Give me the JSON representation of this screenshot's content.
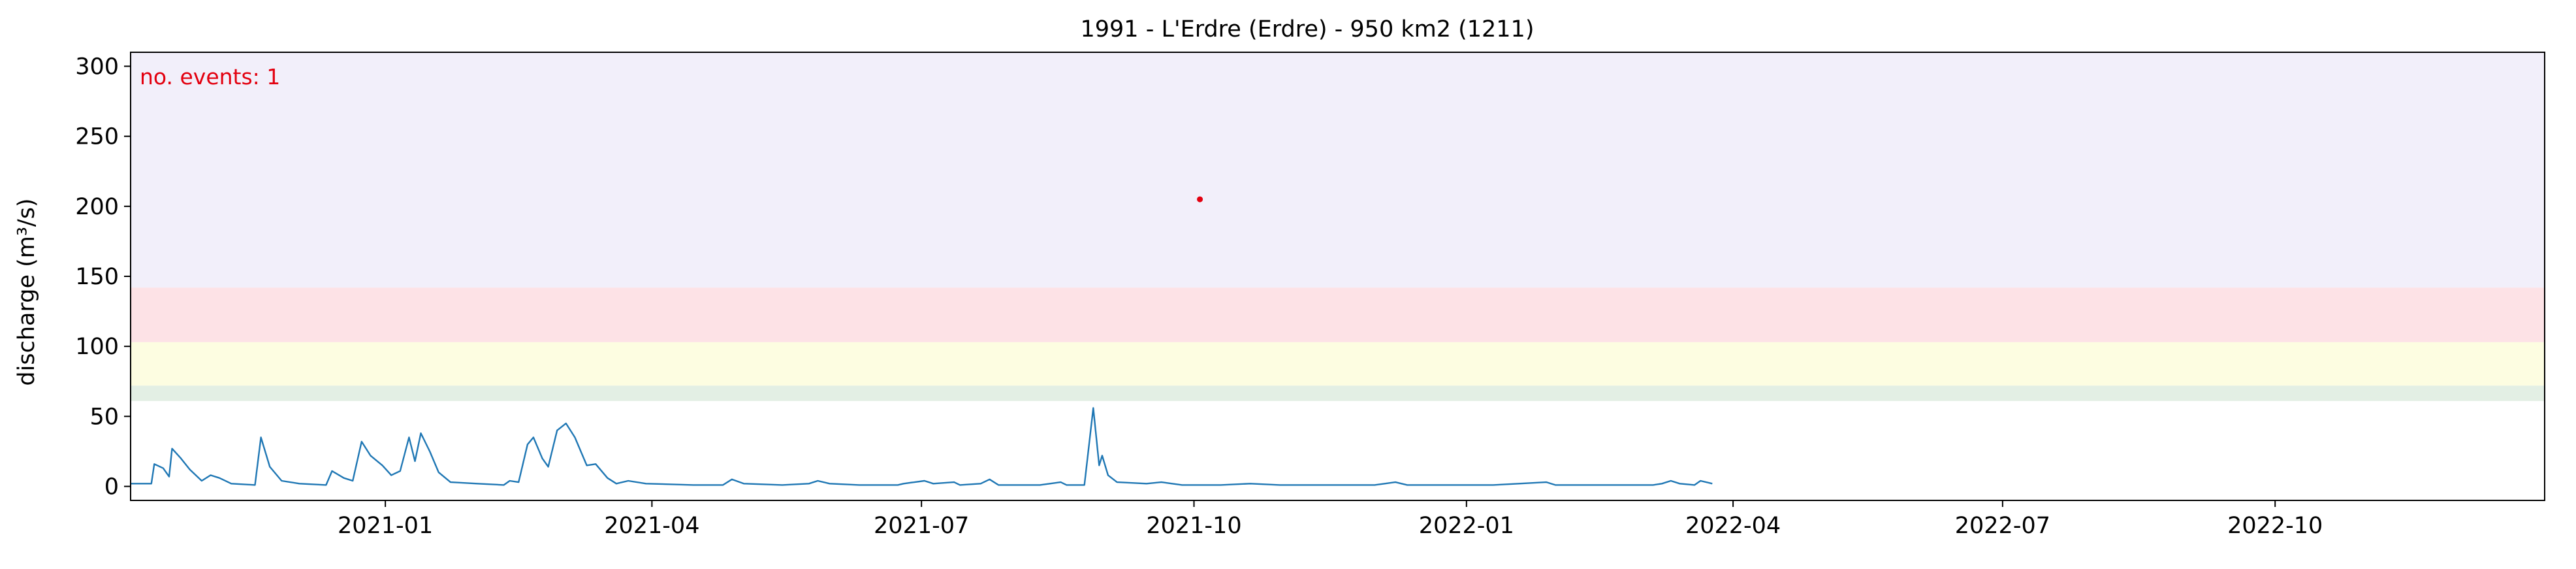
{
  "chart_data": {
    "type": "line",
    "title": "1991 - L'Erdre (Erdre) - 950 km2 (1211)",
    "ylabel": "discharge (m³/s)",
    "xlabel": "",
    "x_range": [
      "2020-10-07",
      "2022-12-31"
    ],
    "ylim": [
      -10,
      310
    ],
    "yticks": [
      0,
      50,
      100,
      150,
      200,
      250,
      300
    ],
    "xticks": [
      {
        "date": "2021-01-01",
        "label": "2021-01"
      },
      {
        "date": "2021-04-01",
        "label": "2021-04"
      },
      {
        "date": "2021-07-01",
        "label": "2021-07"
      },
      {
        "date": "2021-10-01",
        "label": "2021-10"
      },
      {
        "date": "2022-01-01",
        "label": "2022-01"
      },
      {
        "date": "2022-04-01",
        "label": "2022-04"
      },
      {
        "date": "2022-07-01",
        "label": "2022-07"
      },
      {
        "date": "2022-10-01",
        "label": "2022-10"
      }
    ],
    "threshold_bands": [
      {
        "from": 61,
        "to": 72,
        "color": "#e3efe4"
      },
      {
        "from": 72,
        "to": 103,
        "color": "#fdfde1"
      },
      {
        "from": 103,
        "to": 142,
        "color": "#fde2e6"
      },
      {
        "from": 142,
        "to": 310,
        "color": "#f2effa"
      }
    ],
    "annotation": {
      "text": "no. events: 1",
      "color": "#e3000f",
      "position": "top-left"
    },
    "events": [
      {
        "date": "2021-10-03",
        "value": 205
      }
    ],
    "line_color": "#1f77b4",
    "series": [
      {
        "points": [
          [
            "2020-10-07",
            2
          ],
          [
            "2020-10-14",
            2
          ],
          [
            "2020-10-15",
            16
          ],
          [
            "2020-10-18",
            13
          ],
          [
            "2020-10-20",
            7
          ],
          [
            "2020-10-21",
            27
          ],
          [
            "2020-10-24",
            20
          ],
          [
            "2020-10-27",
            12
          ],
          [
            "2020-10-31",
            4
          ],
          [
            "2020-11-03",
            8
          ],
          [
            "2020-11-06",
            6
          ],
          [
            "2020-11-10",
            2
          ],
          [
            "2020-11-18",
            1
          ],
          [
            "2020-11-20",
            35
          ],
          [
            "2020-11-23",
            14
          ],
          [
            "2020-11-27",
            4
          ],
          [
            "2020-12-03",
            2
          ],
          [
            "2020-12-12",
            1
          ],
          [
            "2020-12-14",
            11
          ],
          [
            "2020-12-18",
            6
          ],
          [
            "2020-12-21",
            4
          ],
          [
            "2020-12-24",
            32
          ],
          [
            "2020-12-27",
            22
          ],
          [
            "2020-12-31",
            15
          ],
          [
            "2021-01-03",
            8
          ],
          [
            "2021-01-06",
            11
          ],
          [
            "2021-01-09",
            35
          ],
          [
            "2021-01-11",
            18
          ],
          [
            "2021-01-13",
            38
          ],
          [
            "2021-01-16",
            25
          ],
          [
            "2021-01-19",
            10
          ],
          [
            "2021-01-23",
            3
          ],
          [
            "2021-02-01",
            2
          ],
          [
            "2021-02-10",
            1
          ],
          [
            "2021-02-12",
            4
          ],
          [
            "2021-02-15",
            3
          ],
          [
            "2021-02-18",
            30
          ],
          [
            "2021-02-20",
            35
          ],
          [
            "2021-02-23",
            20
          ],
          [
            "2021-02-25",
            14
          ],
          [
            "2021-02-28",
            40
          ],
          [
            "2021-03-03",
            45
          ],
          [
            "2021-03-06",
            35
          ],
          [
            "2021-03-10",
            15
          ],
          [
            "2021-03-13",
            16
          ],
          [
            "2021-03-17",
            6
          ],
          [
            "2021-03-20",
            2
          ],
          [
            "2021-03-24",
            4
          ],
          [
            "2021-03-30",
            2
          ],
          [
            "2021-04-15",
            1
          ],
          [
            "2021-04-25",
            1
          ],
          [
            "2021-04-28",
            5
          ],
          [
            "2021-05-02",
            2
          ],
          [
            "2021-05-15",
            1
          ],
          [
            "2021-05-24",
            2
          ],
          [
            "2021-05-27",
            4
          ],
          [
            "2021-05-31",
            2
          ],
          [
            "2021-06-10",
            1
          ],
          [
            "2021-06-23",
            1
          ],
          [
            "2021-06-25",
            2
          ],
          [
            "2021-07-02",
            4
          ],
          [
            "2021-07-05",
            2
          ],
          [
            "2021-07-12",
            3
          ],
          [
            "2021-07-14",
            1
          ],
          [
            "2021-07-21",
            2
          ],
          [
            "2021-07-24",
            5
          ],
          [
            "2021-07-27",
            1
          ],
          [
            "2021-08-10",
            1
          ],
          [
            "2021-08-17",
            3
          ],
          [
            "2021-08-19",
            1
          ],
          [
            "2021-08-25",
            1
          ],
          [
            "2021-08-28",
            56
          ],
          [
            "2021-08-30",
            15
          ],
          [
            "2021-08-31",
            22
          ],
          [
            "2021-09-02",
            8
          ],
          [
            "2021-09-05",
            3
          ],
          [
            "2021-09-15",
            2
          ],
          [
            "2021-09-20",
            3
          ],
          [
            "2021-09-27",
            1
          ],
          [
            "2021-10-10",
            1
          ],
          [
            "2021-10-20",
            2
          ],
          [
            "2021-10-30",
            1
          ],
          [
            "2021-11-10",
            1
          ],
          [
            "2021-11-25",
            1
          ],
          [
            "2021-12-01",
            1
          ],
          [
            "2021-12-08",
            3
          ],
          [
            "2021-12-12",
            1
          ],
          [
            "2021-12-20",
            1
          ],
          [
            "2022-01-10",
            1
          ],
          [
            "2022-01-28",
            3
          ],
          [
            "2022-01-31",
            1
          ],
          [
            "2022-02-20",
            1
          ],
          [
            "2022-03-02",
            1
          ],
          [
            "2022-03-05",
            1
          ],
          [
            "2022-03-08",
            2
          ],
          [
            "2022-03-11",
            4
          ],
          [
            "2022-03-14",
            2
          ],
          [
            "2022-03-19",
            1
          ],
          [
            "2022-03-21",
            4
          ],
          [
            "2022-03-25",
            2
          ]
        ]
      }
    ]
  }
}
